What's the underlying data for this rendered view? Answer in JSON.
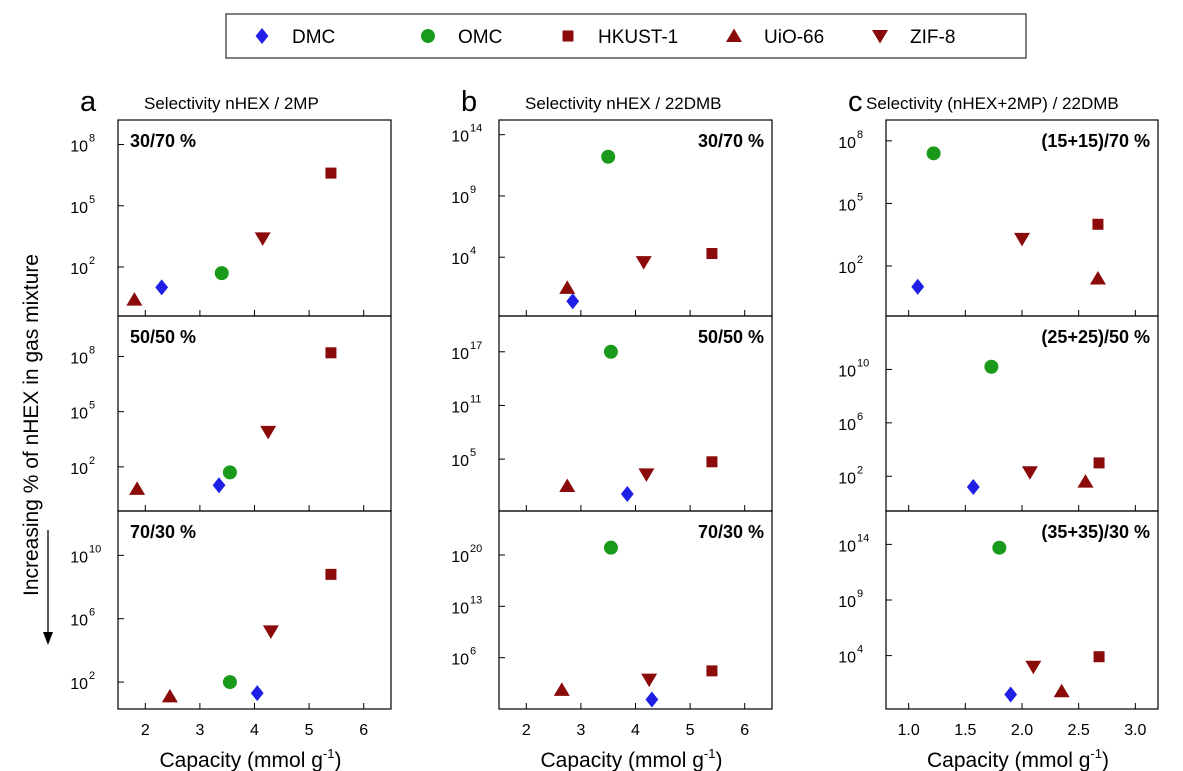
{
  "figure": {
    "y_side_label": "Increasing % of nHEX in gas mixture",
    "legend": [
      {
        "name": "DMC",
        "marker": "diamond",
        "color": "#1f1fe6"
      },
      {
        "name": "OMC",
        "marker": "circle",
        "color": "#1a9a1a"
      },
      {
        "name": "HKUST-1",
        "marker": "square",
        "color": "#8b0a0a"
      },
      {
        "name": "UiO-66",
        "marker": "triangle-up",
        "color": "#8b0a0a"
      },
      {
        "name": "ZIF-8",
        "marker": "triangle-down",
        "color": "#8b0a0a"
      }
    ]
  },
  "chart_data": [
    {
      "type": "scatter",
      "letter": "a",
      "title": "Selectivity nHEX / 2MP",
      "xlabel": "Capacity (mmol g",
      "xlabel_sup": "-1",
      "xlabel_end": ")",
      "xlim": [
        1.5,
        6.5
      ],
      "xticks": [
        2,
        3,
        4,
        5,
        6
      ],
      "xtick_labels": [
        "2",
        "3",
        "4",
        "5",
        "6"
      ],
      "y_scale": "log",
      "subplots": [
        {
          "label": "30/70 %",
          "label_pos": "left",
          "ylim_exp": [
            -0.4,
            9.2
          ],
          "yticks_exp": [
            2,
            5,
            8
          ],
          "points": [
            {
              "series": "DMC",
              "x": 2.3,
              "y_exp": 1.0
            },
            {
              "series": "OMC",
              "x": 3.4,
              "y_exp": 1.7
            },
            {
              "series": "HKUST-1",
              "x": 5.4,
              "y_exp": 6.6
            },
            {
              "series": "UiO-66",
              "x": 1.8,
              "y_exp": 0.4
            },
            {
              "series": "ZIF-8",
              "x": 4.15,
              "y_exp": 3.4
            }
          ]
        },
        {
          "label": "50/50 %",
          "label_pos": "left",
          "ylim_exp": [
            -0.4,
            10.2
          ],
          "yticks_exp": [
            2,
            5,
            8
          ],
          "points": [
            {
              "series": "DMC",
              "x": 3.35,
              "y_exp": 1.0
            },
            {
              "series": "OMC",
              "x": 3.55,
              "y_exp": 1.7
            },
            {
              "series": "HKUST-1",
              "x": 5.4,
              "y_exp": 8.2
            },
            {
              "series": "UiO-66",
              "x": 1.85,
              "y_exp": 0.8
            },
            {
              "series": "ZIF-8",
              "x": 4.25,
              "y_exp": 3.9
            }
          ]
        },
        {
          "label": "70/30 %",
          "label_pos": "left",
          "ylim_exp": [
            0.3,
            12.8
          ],
          "yticks_exp": [
            2,
            6,
            10
          ],
          "points": [
            {
              "series": "DMC",
              "x": 4.05,
              "y_exp": 1.3
            },
            {
              "series": "OMC",
              "x": 3.55,
              "y_exp": 2.0
            },
            {
              "series": "HKUST-1",
              "x": 5.4,
              "y_exp": 8.8
            },
            {
              "series": "UiO-66",
              "x": 2.45,
              "y_exp": 1.1
            },
            {
              "series": "ZIF-8",
              "x": 4.3,
              "y_exp": 5.2
            }
          ]
        }
      ]
    },
    {
      "type": "scatter",
      "letter": "b",
      "title": "Selectivity nHEX / 22DMB",
      "xlabel": "Capacity (mmol g",
      "xlabel_sup": "-1",
      "xlabel_end": ")",
      "xlim": [
        1.5,
        6.5
      ],
      "xticks": [
        2,
        3,
        4,
        5,
        6
      ],
      "xtick_labels": [
        "2",
        "3",
        "4",
        "5",
        "6"
      ],
      "y_scale": "log",
      "subplots": [
        {
          "label": "30/70 %",
          "label_pos": "right",
          "ylim_exp": [
            -0.8,
            15.2
          ],
          "yticks_exp": [
            4,
            9,
            14
          ],
          "points": [
            {
              "series": "DMC",
              "x": 2.85,
              "y_exp": 0.4
            },
            {
              "series": "OMC",
              "x": 3.5,
              "y_exp": 12.2
            },
            {
              "series": "HKUST-1",
              "x": 5.4,
              "y_exp": 4.3
            },
            {
              "series": "UiO-66",
              "x": 2.75,
              "y_exp": 1.5
            },
            {
              "series": "ZIF-8",
              "x": 4.15,
              "y_exp": 3.6
            }
          ]
        },
        {
          "label": "50/50 %",
          "label_pos": "right",
          "ylim_exp": [
            -0.8,
            21.0
          ],
          "yticks_exp": [
            5,
            11,
            17
          ],
          "points": [
            {
              "series": "DMC",
              "x": 3.85,
              "y_exp": 1.1
            },
            {
              "series": "OMC",
              "x": 3.55,
              "y_exp": 17.0
            },
            {
              "series": "HKUST-1",
              "x": 5.4,
              "y_exp": 4.7
            },
            {
              "series": "UiO-66",
              "x": 2.75,
              "y_exp": 2.0
            },
            {
              "series": "ZIF-8",
              "x": 4.2,
              "y_exp": 3.3
            }
          ]
        },
        {
          "label": "70/30 %",
          "label_pos": "right",
          "ylim_exp": [
            -1.0,
            26.0
          ],
          "yticks_exp": [
            6,
            13,
            20
          ],
          "points": [
            {
              "series": "DMC",
              "x": 4.3,
              "y_exp": 0.3
            },
            {
              "series": "OMC",
              "x": 3.55,
              "y_exp": 21.0
            },
            {
              "series": "HKUST-1",
              "x": 5.4,
              "y_exp": 4.2
            },
            {
              "series": "UiO-66",
              "x": 2.65,
              "y_exp": 1.6
            },
            {
              "series": "ZIF-8",
              "x": 4.25,
              "y_exp": 3.0
            }
          ]
        }
      ]
    },
    {
      "type": "scatter",
      "letter": "c",
      "title": "Selectivity (nHEX+2MP) / 22DMB",
      "xlabel": "Capacity (mmol g",
      "xlabel_sup": "-1",
      "xlabel_end": ")",
      "xlim": [
        0.8,
        3.2
      ],
      "xticks": [
        1.0,
        1.5,
        2.0,
        2.5,
        3.0
      ],
      "xtick_labels": [
        "1.0",
        "1.5",
        "2.0",
        "2.5",
        "3.0"
      ],
      "y_scale": "log",
      "subplots": [
        {
          "label": "(15+15)/70 %",
          "label_pos": "right",
          "ylim_exp": [
            -0.4,
            9.0
          ],
          "yticks_exp": [
            2,
            5,
            8
          ],
          "points": [
            {
              "series": "DMC",
              "x": 1.08,
              "y_exp": 1.0
            },
            {
              "series": "OMC",
              "x": 1.22,
              "y_exp": 7.4
            },
            {
              "series": "HKUST-1",
              "x": 2.67,
              "y_exp": 4.0
            },
            {
              "series": "UiO-66",
              "x": 2.67,
              "y_exp": 1.4
            },
            {
              "series": "ZIF-8",
              "x": 2.0,
              "y_exp": 3.3
            }
          ]
        },
        {
          "label": "(25+25)/50 %",
          "label_pos": "right",
          "ylim_exp": [
            -0.6,
            14.0
          ],
          "yticks_exp": [
            2,
            6,
            10
          ],
          "points": [
            {
              "series": "DMC",
              "x": 1.57,
              "y_exp": 1.2
            },
            {
              "series": "OMC",
              "x": 1.73,
              "y_exp": 10.2
            },
            {
              "series": "HKUST-1",
              "x": 2.68,
              "y_exp": 3.0
            },
            {
              "series": "UiO-66",
              "x": 2.56,
              "y_exp": 1.6
            },
            {
              "series": "ZIF-8",
              "x": 2.07,
              "y_exp": 2.3
            }
          ]
        },
        {
          "label": "(35+35)/30 %",
          "label_pos": "right",
          "ylim_exp": [
            -0.8,
            17.0
          ],
          "yticks_exp": [
            4,
            9,
            14
          ],
          "points": [
            {
              "series": "DMC",
              "x": 1.9,
              "y_exp": 0.5
            },
            {
              "series": "OMC",
              "x": 1.8,
              "y_exp": 13.7
            },
            {
              "series": "HKUST-1",
              "x": 2.68,
              "y_exp": 3.9
            },
            {
              "series": "UiO-66",
              "x": 2.35,
              "y_exp": 0.8
            },
            {
              "series": "ZIF-8",
              "x": 2.1,
              "y_exp": 3.0
            }
          ]
        }
      ]
    }
  ]
}
